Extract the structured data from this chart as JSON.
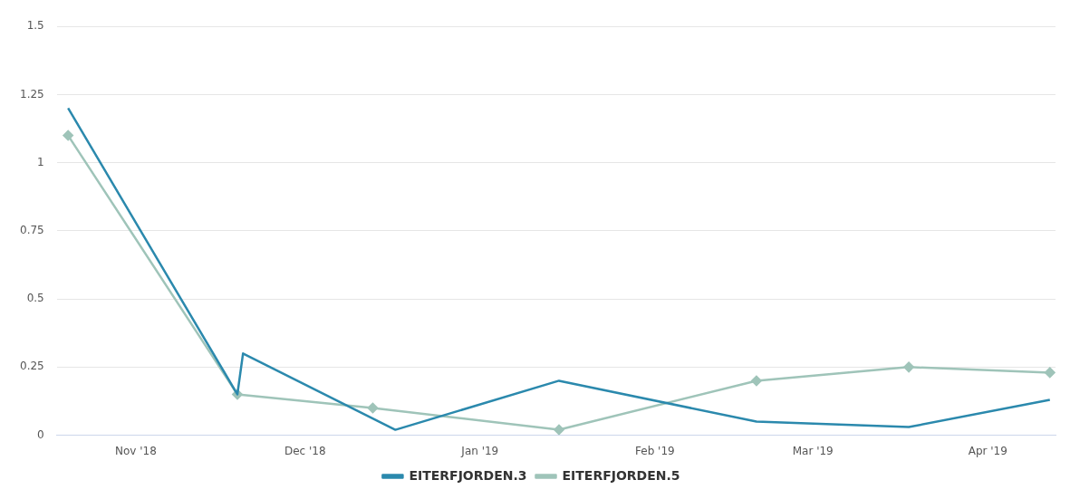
{
  "chart_data": {
    "type": "line",
    "series": [
      {
        "name": "EITERFJORDEN.3",
        "color": "#2b89ad",
        "marker": "none",
        "x": [
          "2018-10-20",
          "2018-11-19",
          "2018-11-20",
          "2018-12-17",
          "2019-01-15",
          "2019-02-19",
          "2019-03-18",
          "2019-04-12"
        ],
        "values": [
          1.2,
          0.15,
          0.3,
          0.02,
          0.2,
          0.05,
          0.03,
          0.13
        ]
      },
      {
        "name": "EITERFJORDEN.5",
        "color": "#9fc4b9",
        "marker": "diamond",
        "x": [
          "2018-10-20",
          "2018-11-19",
          "2018-12-13",
          "2019-01-15",
          "2019-02-19",
          "2019-03-18",
          "2019-04-12"
        ],
        "values": [
          1.1,
          0.15,
          0.1,
          0.02,
          0.2,
          0.25,
          0.23
        ]
      }
    ],
    "xlim": [
      "2018-10-18",
      "2019-04-13"
    ],
    "xticks": [
      {
        "value": "2018-11-01",
        "label": "Nov '18"
      },
      {
        "value": "2018-12-01",
        "label": "Dec '18"
      },
      {
        "value": "2019-01-01",
        "label": "Jan '19"
      },
      {
        "value": "2019-02-01",
        "label": "Feb '19"
      },
      {
        "value": "2019-03-01",
        "label": "Mar '19"
      },
      {
        "value": "2019-04-01",
        "label": "Apr '19"
      }
    ],
    "ylim": [
      0,
      1.5
    ],
    "yticks": [
      0,
      0.25,
      0.5,
      0.75,
      1,
      1.25,
      1.5
    ],
    "grid": "y",
    "legend": "bottom",
    "line_style": "solid"
  }
}
